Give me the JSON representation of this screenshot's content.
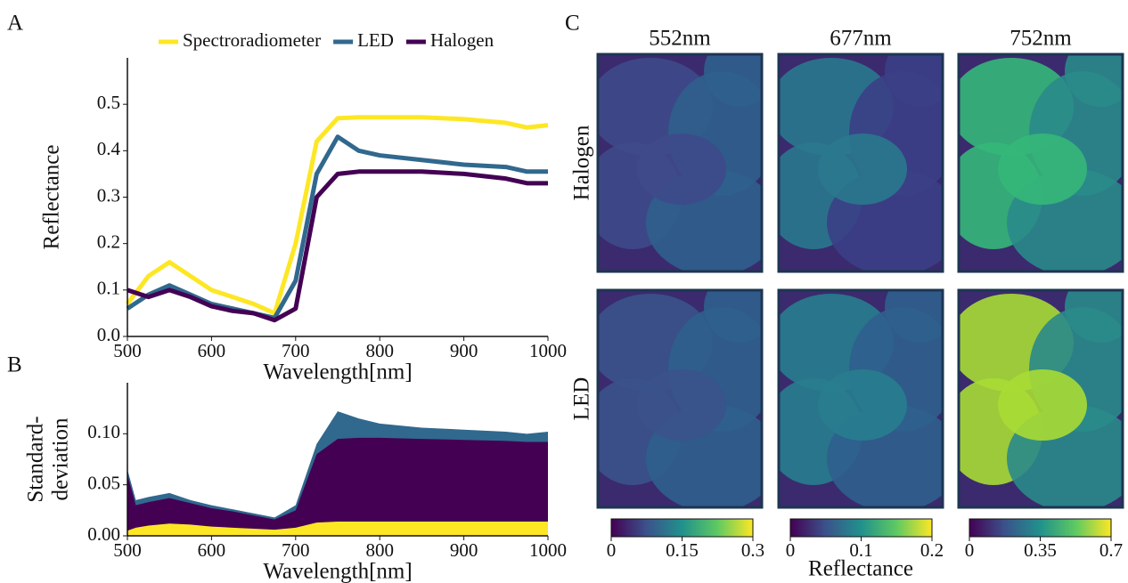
{
  "panel_letters": [
    "A",
    "B",
    "C"
  ],
  "chart_data": [
    {
      "type": "line",
      "ylabel": "Reflectance",
      "xlabel": "Wavelength[nm]",
      "x": [
        500,
        525,
        550,
        575,
        600,
        625,
        650,
        675,
        700,
        725,
        750,
        775,
        800,
        850,
        900,
        950,
        975,
        1000
      ],
      "series": [
        {
          "name": "Spectroradiometer",
          "color": "#fde725",
          "values": [
            0.07,
            0.13,
            0.16,
            0.13,
            0.1,
            0.085,
            0.07,
            0.05,
            0.2,
            0.42,
            0.47,
            0.472,
            0.472,
            0.472,
            0.468,
            0.46,
            0.45,
            0.455
          ]
        },
        {
          "name": "LED",
          "color": "#31688e",
          "values": [
            0.06,
            0.09,
            0.11,
            0.09,
            0.07,
            0.06,
            0.05,
            0.04,
            0.12,
            0.35,
            0.43,
            0.4,
            0.39,
            0.38,
            0.37,
            0.365,
            0.355,
            0.355
          ]
        },
        {
          "name": "Halogen",
          "color": "#440154",
          "values": [
            0.1,
            0.085,
            0.1,
            0.085,
            0.065,
            0.055,
            0.05,
            0.035,
            0.06,
            0.3,
            0.35,
            0.355,
            0.355,
            0.355,
            0.35,
            0.34,
            0.33,
            0.33
          ]
        }
      ],
      "xlim": [
        500,
        1000
      ],
      "xticks": [
        500,
        600,
        700,
        800,
        900,
        1000
      ],
      "ylim": [
        0,
        0.6
      ],
      "yticks": [
        {
          "value": 0,
          "label": "0.0"
        },
        0.1,
        0.2,
        0.3,
        0.4,
        0.5
      ],
      "legend": "top"
    },
    {
      "type": "area",
      "ylabel": [
        "Standard-",
        "deviation"
      ],
      "xlabel": "Wavelength[nm]",
      "x": [
        500,
        510,
        525,
        550,
        575,
        600,
        625,
        650,
        675,
        700,
        725,
        750,
        775,
        800,
        850,
        900,
        950,
        975,
        1000
      ],
      "series": [
        {
          "color": "#31688e",
          "values": [
            0.065,
            0.035,
            0.038,
            0.042,
            0.035,
            0.03,
            0.026,
            0.022,
            0.018,
            0.03,
            0.09,
            0.122,
            0.115,
            0.11,
            0.106,
            0.104,
            0.102,
            0.1,
            0.102
          ]
        },
        {
          "color": "#440154",
          "values": [
            0.06,
            0.03,
            0.033,
            0.037,
            0.032,
            0.027,
            0.024,
            0.02,
            0.016,
            0.025,
            0.08,
            0.095,
            0.096,
            0.096,
            0.095,
            0.094,
            0.093,
            0.092,
            0.092
          ]
        },
        {
          "color": "#fde725",
          "values": [
            0.005,
            0.008,
            0.01,
            0.012,
            0.011,
            0.009,
            0.008,
            0.007,
            0.006,
            0.008,
            0.013,
            0.014,
            0.014,
            0.014,
            0.014,
            0.014,
            0.014,
            0.014,
            0.014
          ]
        }
      ],
      "xlim": [
        500,
        1000
      ],
      "xticks": [
        500,
        600,
        700,
        800,
        900,
        1000
      ],
      "ylim": [
        0,
        0.15
      ],
      "yticks": [
        {
          "value": 0,
          "label": "0.00"
        },
        {
          "value": 0.05,
          "label": "0.05"
        },
        {
          "value": 0.1,
          "label": "0.10"
        }
      ]
    }
  ],
  "images": {
    "columns": [
      "552nm",
      "677nm",
      "752nm"
    ],
    "rows": [
      "Halogen",
      "LED"
    ],
    "colorbar_label": "Reflectance",
    "colorbars": [
      {
        "lim": [
          0,
          0.3
        ],
        "ticks": [
          0,
          0.15,
          0.3
        ]
      },
      {
        "lim": [
          0,
          0.2
        ],
        "ticks": [
          0,
          0.1,
          0.2
        ]
      },
      {
        "lim": [
          0,
          0.7
        ],
        "ticks": [
          0,
          0.35,
          0.7
        ]
      }
    ]
  }
}
